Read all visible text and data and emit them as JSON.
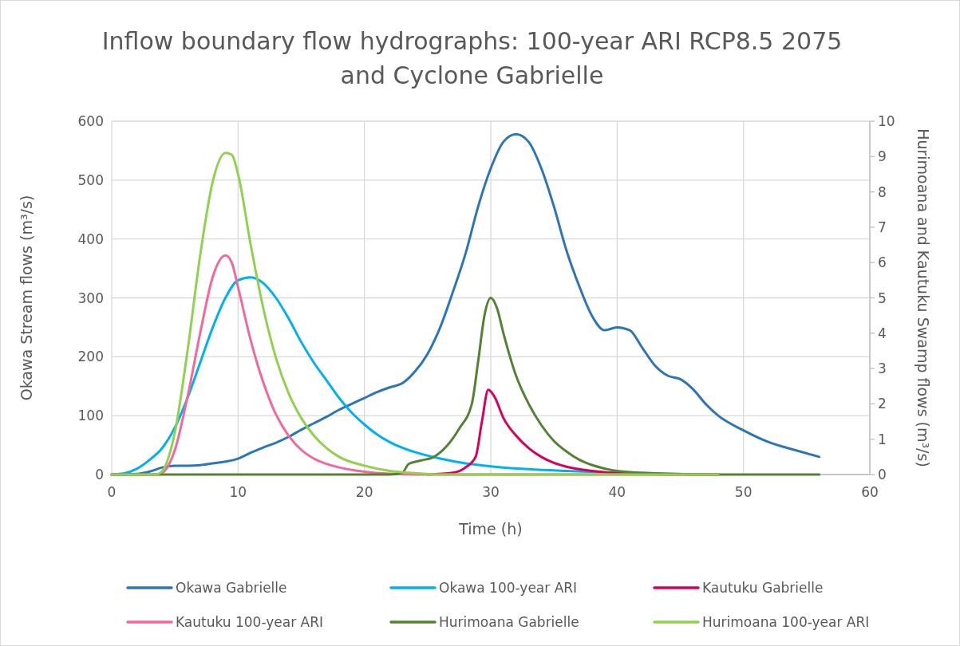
{
  "chart_data": {
    "type": "line",
    "title": "Inflow boundary flow hydrographs: 100-year ARI RCP8.5 2075 and Cyclone Gabrielle",
    "xlabel": "Time (h)",
    "ylabel": "Okawa Stream flows (m³/s)",
    "y2label": "Hurimoana and Kautuku Swamp flows (m³/s)",
    "xlim": [
      0,
      60
    ],
    "xticks": [
      0,
      10,
      20,
      30,
      40,
      50,
      60
    ],
    "ylim": [
      0,
      600
    ],
    "yticks": [
      0,
      100,
      200,
      300,
      400,
      500,
      600
    ],
    "y2lim": [
      0,
      10
    ],
    "y2ticks": [
      0,
      1,
      2,
      3,
      4,
      5,
      6,
      7,
      8,
      9,
      10
    ],
    "grid": true,
    "legend": "bottom",
    "marker": "none",
    "line_style": "solid",
    "series": [
      {
        "name": "Okawa Gabrielle",
        "color": "#2e75b6",
        "x": [
          0,
          2,
          3,
          4,
          5,
          6,
          7,
          8,
          9,
          10,
          11,
          12,
          13,
          14,
          15,
          16,
          17,
          18,
          19,
          20,
          21,
          22,
          23,
          24,
          25,
          26,
          27,
          28,
          29,
          30,
          31,
          32,
          33,
          34,
          35,
          36,
          37,
          38,
          39,
          40,
          41,
          42,
          43,
          44,
          45,
          46,
          47,
          48,
          50,
          52,
          54,
          56
        ],
        "values": [
          0,
          1,
          5,
          12,
          15,
          15,
          16,
          19,
          22,
          27,
          37,
          46,
          54,
          64,
          76,
          87,
          98,
          110,
          120,
          130,
          140,
          148,
          155,
          175,
          205,
          250,
          310,
          375,
          455,
          520,
          565,
          578,
          565,
          520,
          455,
          380,
          320,
          270,
          245,
          250,
          245,
          215,
          185,
          168,
          162,
          145,
          120,
          100,
          75,
          55,
          42,
          30
        ]
      },
      {
        "name": "Okawa 100-year ARI",
        "color": "#00b0f0",
        "x": [
          0,
          1,
          2,
          3,
          4,
          5,
          6,
          7,
          8,
          9,
          10,
          11,
          12,
          13,
          14,
          15,
          16,
          17,
          18,
          19,
          20,
          21,
          22,
          24,
          26,
          28,
          30,
          33,
          36,
          40,
          44,
          48
        ],
        "values": [
          0,
          2,
          10,
          25,
          45,
          80,
          130,
          190,
          250,
          300,
          330,
          335,
          325,
          300,
          265,
          225,
          190,
          160,
          130,
          105,
          85,
          68,
          55,
          38,
          27,
          19,
          14,
          9,
          6,
          3,
          1,
          0
        ]
      },
      {
        "name": "Kautuku Gabrielle",
        "color": "#d9005b",
        "axis": "y2",
        "x": [
          25,
          27,
          28,
          28.8,
          29.3,
          29.8,
          30.3,
          31,
          32,
          33,
          34,
          35,
          36,
          38,
          40,
          44,
          48
        ],
        "values": [
          0,
          0.05,
          0.2,
          0.5,
          1.5,
          2.4,
          2.2,
          1.6,
          1.1,
          0.75,
          0.5,
          0.33,
          0.22,
          0.1,
          0.04,
          0,
          0
        ]
      },
      {
        "name": "Kautuku 100-year ARI",
        "color": "#f4679d",
        "axis": "y2",
        "x": [
          0,
          3.5,
          4,
          5,
          6,
          7,
          8,
          9,
          9.5,
          10,
          11,
          12,
          13,
          14,
          15,
          16,
          18,
          20,
          22,
          24,
          30,
          40,
          48
        ],
        "values": [
          0,
          0,
          0.05,
          0.7,
          2.2,
          4,
          5.6,
          6.2,
          6,
          5.3,
          3.8,
          2.6,
          1.7,
          1.1,
          0.7,
          0.45,
          0.2,
          0.08,
          0.02,
          0,
          0,
          0,
          0
        ]
      },
      {
        "name": "Hurimoana Gabrielle",
        "color": "#548235",
        "axis": "y2",
        "x": [
          0,
          22,
          23,
          23.5,
          24.5,
          25.5,
          26.5,
          27.5,
          28.5,
          29,
          29.5,
          30,
          30.5,
          31,
          32,
          33,
          34,
          35,
          36,
          37,
          38,
          39,
          40,
          42,
          44,
          48,
          56
        ],
        "values": [
          0,
          0,
          0.05,
          0.3,
          0.4,
          0.5,
          0.8,
          1.3,
          2,
          3.2,
          4.5,
          5,
          4.7,
          4,
          2.8,
          2,
          1.4,
          0.95,
          0.65,
          0.42,
          0.27,
          0.17,
          0.1,
          0.05,
          0.02,
          0,
          0
        ]
      },
      {
        "name": "Hurimoana 100-year ARI",
        "color": "#92d050",
        "axis": "y2",
        "x": [
          0,
          3.5,
          4,
          5,
          6,
          7,
          8,
          9,
          9.5,
          10,
          11,
          12,
          13,
          14,
          15,
          16,
          17,
          18,
          20,
          22,
          24,
          26,
          30,
          36,
          40,
          48
        ],
        "values": [
          0,
          0,
          0.1,
          1.2,
          3.5,
          6.2,
          8.3,
          9.1,
          9.05,
          8.5,
          6.5,
          4.7,
          3.3,
          2.3,
          1.6,
          1.1,
          0.75,
          0.5,
          0.25,
          0.1,
          0.04,
          0,
          0,
          0,
          0,
          0
        ]
      }
    ]
  }
}
